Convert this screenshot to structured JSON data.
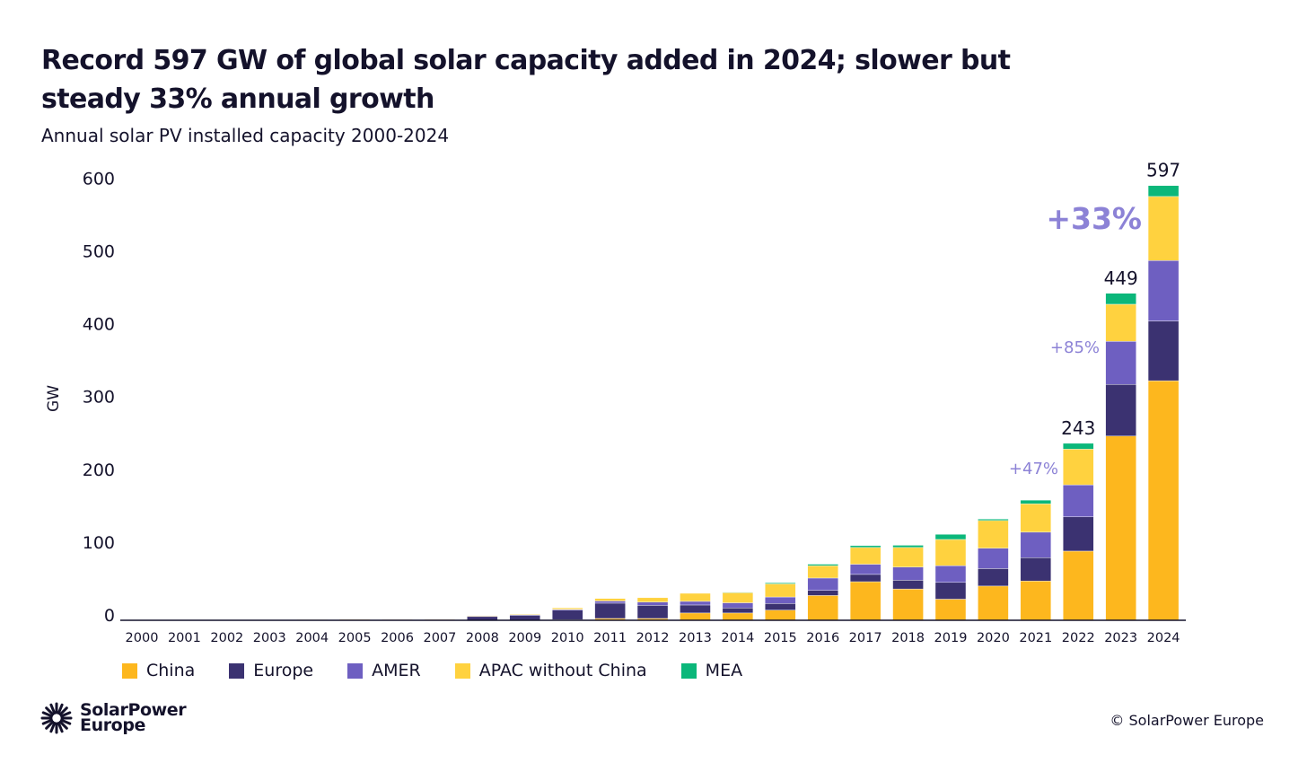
{
  "title": "Record 597 GW of global solar capacity added in 2024; slower but steady 33% annual growth",
  "subtitle": "Annual solar PV installed capacity 2000-2024",
  "footer": {
    "logo_line1": "SolarPower",
    "logo_line2": "Europe",
    "copyright": "© SolarPower Europe"
  },
  "colors": {
    "China": "#FDB71E",
    "Europe": "#3B3271",
    "AMER": "#6E5FC1",
    "APAC without China": "#FFD23F",
    "MEA": "#0BB77A",
    "annotation": "#8C82D6"
  },
  "chart_data": {
    "type": "bar",
    "stacked": true,
    "ylabel": "GW",
    "ylim": [
      0,
      600
    ],
    "yticks": [
      0,
      100,
      200,
      300,
      400,
      500,
      600
    ],
    "grid": false,
    "legend_placement": "bottom",
    "categories": [
      "2000",
      "2001",
      "2002",
      "2003",
      "2004",
      "2005",
      "2006",
      "2007",
      "2008",
      "2009",
      "2010",
      "2011",
      "2012",
      "2013",
      "2014",
      "2015",
      "2016",
      "2017",
      "2018",
      "2019",
      "2020",
      "2021",
      "2022",
      "2023",
      "2024"
    ],
    "series": [
      {
        "name": "China",
        "values": [
          0,
          0,
          0,
          0,
          0,
          0,
          0,
          0,
          0,
          0,
          1,
          2.5,
          2.5,
          10,
          10,
          14,
          34,
          53,
          43,
          29,
          47,
          54,
          95,
          253,
          329
        ]
      },
      {
        "name": "Europe",
        "values": [
          0.2,
          0.2,
          0.3,
          0.4,
          0.8,
          1.1,
          1.3,
          1.2,
          5.5,
          7,
          13,
          21,
          18,
          11,
          7,
          9,
          7,
          10,
          12,
          23,
          24,
          32,
          47,
          71,
          82
        ]
      },
      {
        "name": "AMER",
        "values": [
          0.1,
          0.1,
          0.1,
          0.1,
          0.1,
          0.2,
          0.2,
          0.2,
          0.3,
          0.5,
          1,
          3,
          4.5,
          5,
          7,
          9,
          17,
          14,
          18,
          23,
          28,
          35,
          44,
          59,
          83
        ]
      },
      {
        "name": "APAC without China",
        "values": [
          0,
          0,
          0.1,
          0.1,
          0.1,
          0.1,
          0.1,
          0.1,
          0.5,
          1,
          2,
          3.5,
          6,
          11,
          14,
          18,
          17,
          23,
          27,
          36,
          38,
          39,
          49,
          51,
          88
        ]
      },
      {
        "name": "MEA",
        "values": [
          0,
          0,
          0,
          0,
          0,
          0,
          0,
          0,
          0,
          0,
          0,
          0,
          0,
          0,
          0.5,
          1.5,
          2,
          2.5,
          3,
          7,
          2,
          5,
          8,
          15,
          15
        ]
      }
    ],
    "data_labels": [
      {
        "category": "2022",
        "text": "243"
      },
      {
        "category": "2023",
        "text": "449"
      },
      {
        "category": "2024",
        "text": "597"
      }
    ],
    "annotations": [
      {
        "category": "2022",
        "text": "+47%"
      },
      {
        "category": "2023",
        "text": "+85%"
      },
      {
        "category": "2024",
        "text": "+33%"
      }
    ]
  }
}
